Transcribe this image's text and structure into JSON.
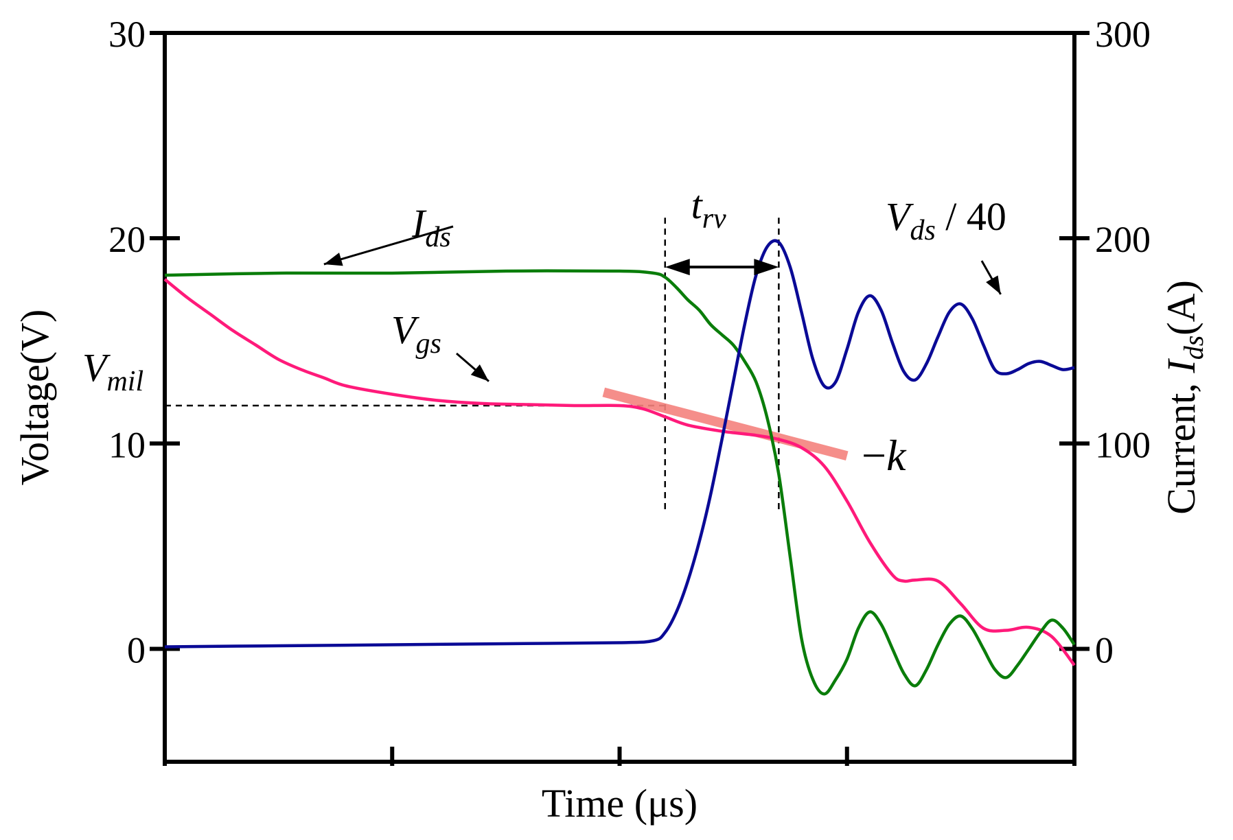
{
  "chart_data": {
    "type": "line",
    "xlabel": "Time (μs)",
    "ylabel_left": "Voltage(V)",
    "ylabel_right_prefix": "Current, ",
    "ylabel_right_sym": "I",
    "ylabel_right_sub": "ds",
    "ylabel_right_unit": "(A)",
    "xlim": [
      0,
      4
    ],
    "ylim_left": [
      -5.5,
      30
    ],
    "ylim_right": [
      -55,
      300
    ],
    "left_ticks": [
      "0",
      "10",
      "20",
      "30"
    ],
    "right_ticks": [
      "0",
      "100",
      "200",
      "300"
    ],
    "left_tick_values": [
      0,
      10,
      20,
      30
    ],
    "right_tick_values": [
      0,
      100,
      200,
      300
    ],
    "x_tick_values": [
      0,
      1,
      2,
      3,
      4
    ],
    "grid": false,
    "legend": "none",
    "series": [
      {
        "name": "Vgs",
        "axis": "left",
        "color": "#ff1a7a",
        "x": [
          0,
          0.1,
          0.2,
          0.3,
          0.4,
          0.5,
          0.6,
          0.7,
          0.8,
          1.0,
          1.2,
          1.4,
          1.6,
          1.8,
          2.0,
          2.1,
          2.2,
          2.3,
          2.45,
          2.6,
          2.7,
          2.8,
          2.9,
          3.0,
          3.1,
          3.2,
          3.25,
          3.3,
          3.4,
          3.5,
          3.6,
          3.7,
          3.8,
          3.9,
          4.0
        ],
        "y": [
          18.0,
          17.1,
          16.3,
          15.5,
          14.8,
          14.1,
          13.6,
          13.2,
          12.8,
          12.4,
          12.1,
          11.95,
          11.9,
          11.85,
          11.85,
          11.7,
          11.3,
          10.9,
          10.6,
          10.4,
          10.2,
          9.8,
          8.9,
          7.2,
          5.2,
          3.6,
          3.3,
          3.35,
          3.3,
          2.2,
          1.0,
          0.9,
          1.05,
          0.6,
          -0.8
        ]
      },
      {
        "name": "Ids",
        "axis": "right",
        "color": "#0a7d0a",
        "x": [
          0,
          0.5,
          1.0,
          1.5,
          2.0,
          2.15,
          2.2,
          2.25,
          2.3,
          2.35,
          2.4,
          2.45,
          2.5,
          2.55,
          2.6,
          2.65,
          2.7,
          2.75,
          2.8,
          2.85,
          2.9,
          2.95,
          3.0,
          3.05,
          3.1,
          3.15,
          3.2,
          3.25,
          3.3,
          3.35,
          3.4,
          3.45,
          3.5,
          3.55,
          3.6,
          3.65,
          3.7,
          3.75,
          3.8,
          3.85,
          3.9,
          3.95,
          4.0
        ],
        "y": [
          182,
          183,
          183,
          184,
          184,
          183,
          181,
          176,
          170,
          165,
          158,
          153,
          148,
          140,
          130,
          112,
          85,
          45,
          5,
          -15,
          -22,
          -15,
          -5,
          10,
          18,
          12,
          0,
          -12,
          -18,
          -10,
          2,
          12,
          16,
          10,
          0,
          -10,
          -14,
          -8,
          0,
          8,
          14,
          10,
          2
        ]
      },
      {
        "name": "Vds/40",
        "axis": "left",
        "color": "#0a0a96",
        "x": [
          0,
          0.5,
          1.0,
          1.5,
          2.0,
          2.15,
          2.2,
          2.25,
          2.3,
          2.35,
          2.4,
          2.45,
          2.5,
          2.55,
          2.6,
          2.65,
          2.7,
          2.75,
          2.8,
          2.85,
          2.9,
          2.95,
          3.0,
          3.05,
          3.1,
          3.15,
          3.2,
          3.25,
          3.3,
          3.35,
          3.4,
          3.45,
          3.5,
          3.55,
          3.6,
          3.65,
          3.7,
          3.75,
          3.8,
          3.85,
          3.9,
          3.95,
          4.0
        ],
        "y": [
          0.1,
          0.15,
          0.2,
          0.25,
          0.3,
          0.4,
          0.8,
          1.8,
          3.3,
          5.2,
          7.5,
          10.2,
          13.0,
          15.8,
          18.2,
          19.6,
          19.8,
          18.6,
          16.4,
          14.1,
          12.8,
          13.0,
          14.6,
          16.4,
          17.2,
          16.5,
          14.9,
          13.5,
          13.1,
          13.9,
          15.2,
          16.4,
          16.8,
          16.1,
          14.8,
          13.6,
          13.4,
          13.6,
          13.9,
          14.0,
          13.8,
          13.6,
          13.7
        ]
      }
    ],
    "fit_line": {
      "label_sign": "−",
      "label_var": "k",
      "color": "#f5827e",
      "x": [
        1.93,
        3.0
      ],
      "y": [
        12.5,
        9.4
      ]
    },
    "v_mil_line": {
      "y": 11.85,
      "x_end": 2.2
    },
    "t_rv_lines": {
      "x1": 2.2,
      "x2": 2.7,
      "y_bottom": 6.8,
      "y_top": 21.0,
      "arrow_y": 19.6
    },
    "annotations": {
      "ids_sym": "I",
      "ids_sub": "ds",
      "vgs_sym": "V",
      "vgs_sub": "gs",
      "vmil_sym": "V",
      "vmil_sub": "mil",
      "trv_sym": "t",
      "trv_sub": "rv",
      "vds_sym": "V",
      "vds_sub": "ds",
      "vds_suffix": " / 40"
    }
  }
}
